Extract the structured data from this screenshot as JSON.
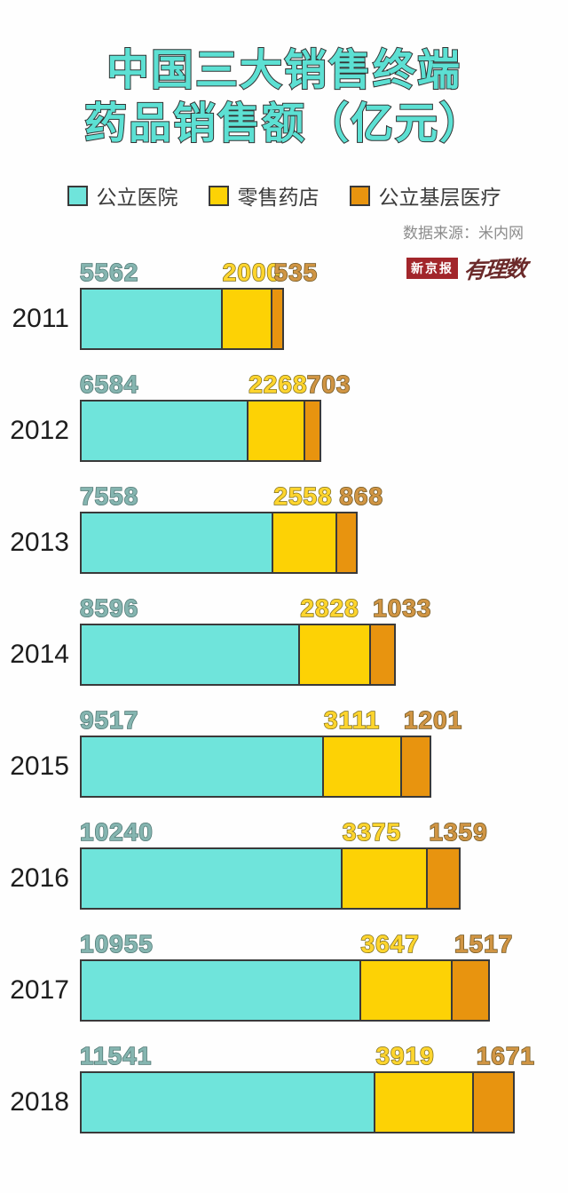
{
  "title": {
    "line1": "中国三大销售终端",
    "line2": "药品销售额（亿元）"
  },
  "legend": [
    {
      "label": "公立医院",
      "color": "#6FE4DB"
    },
    {
      "label": "零售药店",
      "color": "#FDD205"
    },
    {
      "label": "公立基层医疗",
      "color": "#E8940F"
    }
  ],
  "source": "数据来源：米内网",
  "logo": {
    "boxed": "新京报",
    "script": "有理数"
  },
  "colors": {
    "title_fill": "#5CE0D3",
    "title_stroke": "#333333",
    "bar_border": "#3a3a3a",
    "logo_red": "#A2262B"
  },
  "chart_data": {
    "type": "bar",
    "orientation": "horizontal",
    "stacked": true,
    "title": "中国三大销售终端药品销售额（亿元）",
    "unit": "亿元",
    "categories": [
      "2011",
      "2012",
      "2013",
      "2014",
      "2015",
      "2016",
      "2017",
      "2018"
    ],
    "series": [
      {
        "name": "公立医院",
        "color": "#6FE4DB",
        "values": [
          5562,
          6584,
          7558,
          8596,
          9517,
          10240,
          10955,
          11541
        ]
      },
      {
        "name": "零售药店",
        "color": "#FDD205",
        "values": [
          2000,
          2268,
          2558,
          2828,
          3111,
          3375,
          3647,
          3919
        ]
      },
      {
        "name": "公立基层医疗",
        "color": "#E8940F",
        "values": [
          535,
          703,
          868,
          1033,
          1201,
          1359,
          1517,
          1671
        ]
      }
    ],
    "x_max_total": 17131,
    "grid": false,
    "legend_position": "top",
    "value_labels": "above-segments"
  }
}
